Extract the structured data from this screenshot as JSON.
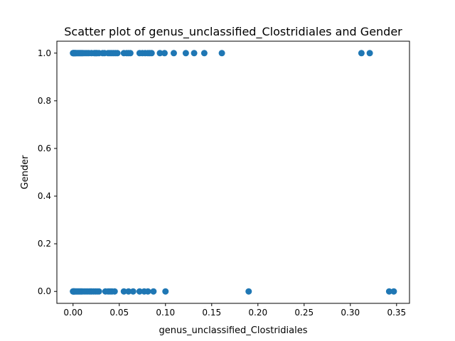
{
  "chart_data": {
    "type": "scatter",
    "title": "Scatter plot of genus_unclassified_Clostridiales and Gender",
    "xlabel": "genus_unclassified_Clostridiales",
    "ylabel": "Gender",
    "xlim": [
      -0.0175,
      0.364
    ],
    "ylim": [
      -0.05,
      1.05
    ],
    "xticks": [
      0.0,
      0.05,
      0.1,
      0.15,
      0.2,
      0.25,
      0.3,
      0.35
    ],
    "xtick_labels": [
      "0.00",
      "0.05",
      "0.10",
      "0.15",
      "0.20",
      "0.25",
      "0.30",
      "0.35"
    ],
    "yticks": [
      0.0,
      0.2,
      0.4,
      0.6,
      0.8,
      1.0
    ],
    "ytick_labels": [
      "0.0",
      "0.2",
      "0.4",
      "0.6",
      "0.8",
      "1.0"
    ],
    "grid": false,
    "legend": "none",
    "marker_color": "#1f77b4",
    "series": [
      {
        "x": [
          0.0,
          0.0,
          0.0005,
          0.001,
          0.0015,
          0.002,
          0.0025,
          0.003,
          0.004,
          0.005,
          0.006,
          0.007,
          0.008,
          0.009,
          0.01,
          0.011,
          0.013,
          0.015,
          0.017,
          0.02,
          0.023,
          0.024,
          0.025,
          0.026,
          0.028,
          0.032,
          0.034,
          0.038,
          0.04,
          0.042,
          0.044,
          0.046,
          0.048,
          0.055,
          0.058,
          0.06,
          0.062,
          0.072,
          0.075,
          0.078,
          0.081,
          0.083,
          0.085,
          0.094,
          0.099,
          0.109,
          0.122,
          0.131,
          0.142,
          0.161,
          0.312,
          0.321
        ],
        "y": [
          1,
          1,
          1,
          1,
          1,
          1,
          1,
          1,
          1,
          1,
          1,
          1,
          1,
          1,
          1,
          1,
          1,
          1,
          1,
          1,
          1,
          1,
          1,
          1,
          1,
          1,
          1,
          1,
          1,
          1,
          1,
          1,
          1,
          1,
          1,
          1,
          1,
          1,
          1,
          1,
          1,
          1,
          1,
          1,
          1,
          1,
          1,
          1,
          1,
          1,
          1,
          1
        ]
      },
      {
        "x": [
          0.0,
          0.0,
          0.0005,
          0.001,
          0.0015,
          0.002,
          0.003,
          0.004,
          0.005,
          0.006,
          0.007,
          0.008,
          0.009,
          0.01,
          0.012,
          0.014,
          0.016,
          0.018,
          0.02,
          0.022,
          0.024,
          0.026,
          0.028,
          0.035,
          0.038,
          0.04,
          0.042,
          0.045,
          0.055,
          0.06,
          0.065,
          0.072,
          0.077,
          0.081,
          0.087,
          0.1,
          0.19,
          0.342,
          0.347
        ],
        "y": [
          0,
          0,
          0,
          0,
          0,
          0,
          0,
          0,
          0,
          0,
          0,
          0,
          0,
          0,
          0,
          0,
          0,
          0,
          0,
          0,
          0,
          0,
          0,
          0,
          0,
          0,
          0,
          0,
          0,
          0,
          0,
          0,
          0,
          0,
          0,
          0,
          0,
          0,
          0
        ]
      }
    ]
  }
}
